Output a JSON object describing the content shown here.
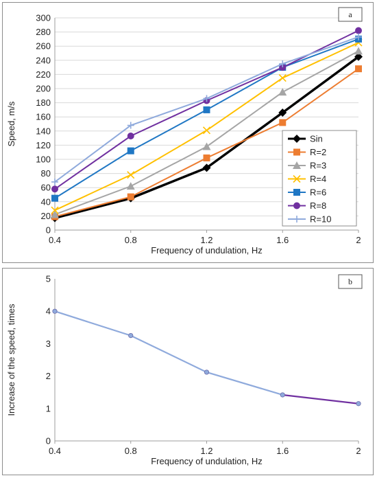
{
  "chart_data": [
    {
      "id": "a",
      "type": "line",
      "panel_tag": "a",
      "xlabel": "Frequency of undulation, Hz",
      "ylabel": "Speed, m/s",
      "x": [
        0.4,
        0.8,
        1.2,
        1.6,
        2.0
      ],
      "x_tick_labels": [
        "0.4",
        "0.8",
        "1.2",
        "1.6",
        "2"
      ],
      "y_ticks": [
        0,
        20,
        40,
        60,
        80,
        100,
        120,
        140,
        160,
        180,
        200,
        220,
        240,
        260,
        280,
        300
      ],
      "xlim": [
        0.4,
        2.0
      ],
      "ylim": [
        0,
        300
      ],
      "grid": "horizontal",
      "legend_position": "right",
      "series": [
        {
          "name": "Sin",
          "color": "#000000",
          "marker": "diamond",
          "values": [
            17,
            45,
            88,
            166,
            245
          ]
        },
        {
          "name": "R=2",
          "color": "#ED7D31",
          "marker": "square",
          "values": [
            19,
            47,
            102,
            152,
            228
          ]
        },
        {
          "name": "R=3",
          "color": "#A5A5A5",
          "marker": "triangle",
          "values": [
            22,
            62,
            118,
            195,
            253
          ]
        },
        {
          "name": "R=4",
          "color": "#FFC000",
          "marker": "x",
          "values": [
            28,
            78,
            141,
            215,
            265
          ]
        },
        {
          "name": "R=6",
          "color": "#1F77C4",
          "marker": "square",
          "values": [
            45,
            112,
            170,
            230,
            270
          ]
        },
        {
          "name": "R=8",
          "color": "#7030A0",
          "marker": "circle",
          "values": [
            58,
            133,
            183,
            230,
            282
          ]
        },
        {
          "name": "R=10",
          "color": "#8FAADC",
          "marker": "plus",
          "values": [
            68,
            148,
            186,
            235,
            273
          ]
        }
      ]
    },
    {
      "id": "b",
      "type": "line",
      "panel_tag": "b",
      "xlabel": "Frequency of undulation, Hz",
      "ylabel": "Increase of the speed, times",
      "x": [
        0.4,
        0.8,
        1.2,
        1.6,
        2.0
      ],
      "x_tick_labels": [
        "0.4",
        "0.8",
        "1.2",
        "1.6",
        "2"
      ],
      "y_ticks": [
        0,
        1,
        2,
        3,
        4,
        5
      ],
      "xlim": [
        0.4,
        2.0
      ],
      "ylim": [
        0,
        5
      ],
      "grid": "none",
      "series": [
        {
          "color": "#8FAADC",
          "segment_end_color": "#7030A0",
          "marker": "circle",
          "values": [
            4.0,
            3.25,
            2.12,
            1.42,
            1.15
          ]
        }
      ]
    }
  ]
}
